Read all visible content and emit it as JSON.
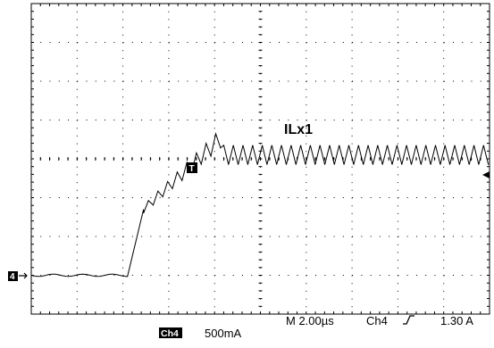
{
  "chart_data": {
    "type": "line",
    "title": "",
    "xlabel": "",
    "ylabel": "",
    "grid": true,
    "x_divisions": 10,
    "y_divisions": 8,
    "time_per_div_us": 2.0,
    "current_per_div_mA": 500,
    "xlim_us": [
      0,
      20
    ],
    "ylim_div": [
      -4,
      4
    ],
    "series": [
      {
        "name": "ILx1",
        "channel": "Ch4",
        "ground_level_div": -3,
        "waveform": {
          "baseline_until_us": 4.3,
          "ramp_end_us": 8.4,
          "ramp_start_div": -3.0,
          "ramp_end_div": 0.6,
          "settled_level_div": 0.0,
          "ripple_pp_div": 0.5,
          "ripple_period_us": 0.42
        }
      }
    ],
    "labels": {
      "trace_label": "ILx1",
      "ground_marker": "4",
      "trigger_marker": "T",
      "channel": "Ch4",
      "scale": "500mA",
      "timebase": "M 2.00µs",
      "trigger_source": "Ch4",
      "trigger_level": "1.30 A"
    },
    "colors": {
      "background": "#ffffff",
      "grid": "#000000",
      "trace": "#000000",
      "marker_bg": "#000000",
      "marker_fg": "#ffffff"
    }
  }
}
